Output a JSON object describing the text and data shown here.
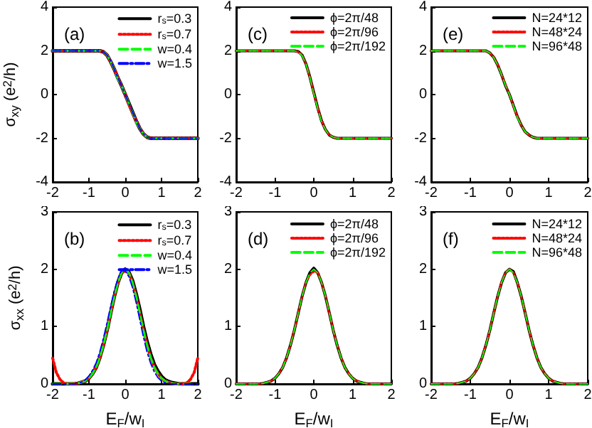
{
  "chart_data": [
    {
      "type": "line",
      "annotations": [
        "(a)"
      ],
      "ylabel": "σ$_{xy}$ (e$^{2}$/h)",
      "legend": "top right",
      "xlim": [
        -2,
        2
      ],
      "xticks": [
        -2,
        -1,
        0,
        1,
        2
      ],
      "ylim": [
        -4,
        4
      ],
      "yticks": [
        -4,
        -2,
        0,
        2,
        4
      ],
      "x": [
        -2,
        -1.9,
        -1.8,
        -1.7,
        -1.6,
        -1.5,
        -1.4,
        -1.3,
        -1.2,
        -1.1,
        -1,
        -0.9,
        -0.8,
        -0.7,
        -0.6,
        -0.5,
        -0.4,
        -0.3,
        -0.2,
        -0.1,
        0,
        0.1,
        0.2,
        0.3,
        0.4,
        0.5,
        0.6,
        0.7,
        0.8,
        0.9,
        1,
        1.1,
        1.2,
        1.3,
        1.4,
        1.5,
        1.6,
        1.7,
        1.8,
        1.9,
        2
      ],
      "series": [
        {
          "name": "r$_{s}$=0.3",
          "color": "#000000",
          "line_style": "solid",
          "values": [
            2,
            2,
            2,
            2,
            2,
            2,
            2,
            2,
            2,
            2,
            2,
            2,
            2,
            2,
            1.95,
            1.8,
            1.5,
            1.15,
            0.75,
            0.4,
            0,
            -0.4,
            -0.8,
            -1.2,
            -1.55,
            -1.8,
            -1.95,
            -2,
            -2,
            -2,
            -2,
            -2,
            -2,
            -2,
            -2,
            -2,
            -2,
            -2,
            -2,
            -2,
            -2
          ]
        },
        {
          "name": "r$_{s}$=0.7",
          "color": "#ff0000",
          "line_style": "dotted",
          "values": [
            2,
            2,
            2,
            2,
            2,
            2,
            2,
            2,
            2,
            2,
            2,
            2,
            2,
            2,
            1.95,
            1.8,
            1.5,
            1.15,
            0.75,
            0.4,
            0,
            -0.45,
            -0.85,
            -1.2,
            -1.55,
            -1.8,
            -1.95,
            -2,
            -2,
            -2,
            -2,
            -2,
            -2,
            -2,
            -2,
            -2,
            -2,
            -2,
            -2,
            -2,
            -2
          ]
        },
        {
          "name": "w=0.4",
          "color": "#00ff00",
          "line_style": "dashed",
          "values": [
            2,
            2,
            2,
            2,
            2,
            2,
            2,
            2,
            2,
            2,
            2,
            2,
            2,
            2,
            1.95,
            1.8,
            1.5,
            1.15,
            0.7,
            0.4,
            0,
            -0.4,
            -0.8,
            -1.25,
            -1.55,
            -1.8,
            -1.95,
            -2,
            -2,
            -2,
            -2,
            -2,
            -2,
            -2,
            -2,
            -2,
            -2,
            -2,
            -2,
            -2,
            -2
          ]
        },
        {
          "name": "w=1.5",
          "color": "#0000ff",
          "line_style": "dashdot",
          "values": [
            2,
            2,
            2,
            2,
            2,
            2,
            2,
            2,
            2,
            2,
            2,
            2,
            2,
            2,
            1.95,
            1.8,
            1.55,
            1.15,
            0.75,
            0.4,
            0,
            -0.4,
            -0.8,
            -1.2,
            -1.55,
            -1.8,
            -1.95,
            -2,
            -2,
            -2,
            -2,
            -2,
            -2,
            -2,
            -2,
            -2,
            -2,
            -2,
            -2,
            -2,
            -2
          ]
        }
      ]
    },
    {
      "type": "line",
      "annotations": [
        "(c)"
      ],
      "legend": "top right",
      "xlim": [
        -2,
        2
      ],
      "xticks": [
        -2,
        -1,
        0,
        1,
        2
      ],
      "ylim": [
        -4,
        4
      ],
      "yticks": [
        -4,
        -2,
        0,
        2,
        4
      ],
      "x": [
        -2,
        -1.9,
        -1.8,
        -1.7,
        -1.6,
        -1.5,
        -1.4,
        -1.3,
        -1.2,
        -1.1,
        -1,
        -0.9,
        -0.8,
        -0.7,
        -0.6,
        -0.5,
        -0.4,
        -0.3,
        -0.2,
        -0.1,
        0,
        0.1,
        0.2,
        0.3,
        0.4,
        0.5,
        0.6,
        0.7,
        0.8,
        0.9,
        1,
        1.1,
        1.2,
        1.3,
        1.4,
        1.5,
        1.6,
        1.7,
        1.8,
        1.9,
        2
      ],
      "series": [
        {
          "name": "ϕ=2π/48",
          "color": "#000000",
          "line_style": "solid",
          "values": [
            2,
            2,
            2,
            2,
            2,
            2,
            2,
            2,
            2,
            2,
            2,
            2,
            2,
            2,
            2,
            2,
            1.97,
            1.8,
            1.4,
            0.8,
            0.1,
            -0.6,
            -1.2,
            -1.6,
            -1.85,
            -1.95,
            -2,
            -2,
            -2,
            -2,
            -2,
            -2,
            -2,
            -2,
            -2,
            -2,
            -2,
            -2,
            -2,
            -2,
            -2
          ]
        },
        {
          "name": "ϕ=2π/96",
          "color": "#ff0000",
          "line_style": "dotted",
          "values": [
            2,
            2,
            2,
            2,
            2,
            2,
            2,
            2,
            2,
            2,
            2,
            2,
            2,
            2,
            2,
            2,
            1.95,
            1.8,
            1.4,
            0.8,
            0.05,
            -0.6,
            -1.2,
            -1.6,
            -1.85,
            -1.95,
            -2,
            -2,
            -2,
            -2,
            -2,
            -2,
            -2,
            -2,
            -2,
            -2,
            -2,
            -2,
            -2,
            -2,
            -2
          ]
        },
        {
          "name": "ϕ=2π/192",
          "color": "#00ff00",
          "line_style": "dashed",
          "values": [
            2,
            2,
            2,
            2,
            2,
            2,
            2,
            2,
            2,
            2,
            2,
            2,
            2,
            2,
            2,
            2,
            1.95,
            1.78,
            1.38,
            0.78,
            0.05,
            -0.65,
            -1.25,
            -1.6,
            -1.85,
            -1.95,
            -2,
            -2,
            -2,
            -2,
            -2,
            -2,
            -2,
            -2,
            -2,
            -2,
            -2,
            -2,
            -2,
            -2,
            -2
          ]
        }
      ]
    },
    {
      "type": "line",
      "annotations": [
        "(e)"
      ],
      "legend": "top right",
      "xlim": [
        -2,
        2
      ],
      "xticks": [
        -2,
        -1,
        0,
        1,
        2
      ],
      "ylim": [
        -4,
        4
      ],
      "yticks": [
        -4,
        -2,
        0,
        2,
        4
      ],
      "x": [
        -2,
        -1.9,
        -1.8,
        -1.7,
        -1.6,
        -1.5,
        -1.4,
        -1.3,
        -1.2,
        -1.1,
        -1,
        -0.9,
        -0.8,
        -0.7,
        -0.6,
        -0.5,
        -0.4,
        -0.3,
        -0.2,
        -0.1,
        0,
        0.1,
        0.2,
        0.3,
        0.4,
        0.5,
        0.6,
        0.7,
        0.8,
        0.9,
        1,
        1.1,
        1.2,
        1.3,
        1.4,
        1.5,
        1.6,
        1.7,
        1.8,
        1.9,
        2
      ],
      "series": [
        {
          "name": "N=24*12",
          "color": "#000000",
          "line_style": "solid",
          "values": [
            2,
            2,
            2,
            2,
            2,
            2,
            2,
            2,
            2,
            2,
            2,
            2,
            2,
            2,
            2,
            1.9,
            1.7,
            1.35,
            0.9,
            0.4,
            0,
            -0.5,
            -1,
            -1.4,
            -1.7,
            -1.85,
            -1.95,
            -2,
            -2,
            -2,
            -2,
            -2,
            -2,
            -2,
            -2,
            -2,
            -2,
            -2,
            -2,
            -2,
            -2
          ]
        },
        {
          "name": "N=48*24",
          "color": "#ff0000",
          "line_style": "dotted",
          "values": [
            2,
            2,
            2,
            2,
            2,
            2,
            2,
            2,
            2,
            2,
            2,
            2,
            2,
            2,
            2,
            1.9,
            1.7,
            1.35,
            0.9,
            0.45,
            0,
            -0.55,
            -1,
            -1.4,
            -1.7,
            -1.85,
            -1.95,
            -2,
            -2,
            -2,
            -2,
            -2,
            -2,
            -2,
            -2,
            -2,
            -2,
            -2,
            -2,
            -2,
            -2
          ]
        },
        {
          "name": "N=96*48",
          "color": "#00ff00",
          "line_style": "dashed",
          "values": [
            2,
            2,
            2,
            2,
            2,
            2,
            2,
            2,
            2,
            2,
            2,
            2,
            2,
            2,
            2,
            1.9,
            1.68,
            1.35,
            0.9,
            0.4,
            0,
            -0.5,
            -1.05,
            -1.4,
            -1.7,
            -1.85,
            -1.95,
            -2,
            -2,
            -2,
            -2,
            -2,
            -2,
            -2,
            -2,
            -2,
            -2,
            -2,
            -2,
            -2,
            -2
          ]
        }
      ]
    },
    {
      "type": "line",
      "annotations": [
        "(b)"
      ],
      "ylabel": "σ$_{xx}$ (e$^{2}$/h)",
      "xlabel": "E$_{F}$/w$_{I}$",
      "legend": "top right",
      "xlim": [
        -2,
        2
      ],
      "xticks": [
        -2,
        -1,
        0,
        1,
        2
      ],
      "ylim": [
        0,
        3
      ],
      "yticks": [
        0,
        1,
        2,
        3
      ],
      "x": [
        -2,
        -1.9,
        -1.8,
        -1.7,
        -1.6,
        -1.5,
        -1.4,
        -1.3,
        -1.2,
        -1.1,
        -1,
        -0.9,
        -0.8,
        -0.7,
        -0.6,
        -0.5,
        -0.4,
        -0.3,
        -0.2,
        -0.1,
        0,
        0.1,
        0.2,
        0.3,
        0.4,
        0.5,
        0.6,
        0.7,
        0.8,
        0.9,
        1,
        1.1,
        1.2,
        1.3,
        1.4,
        1.5,
        1.6,
        1.7,
        1.8,
        1.9,
        2
      ],
      "series": [
        {
          "name": "r$_{s}$=0.3",
          "color": "#000000",
          "line_style": "solid",
          "values": [
            0,
            0,
            0,
            0,
            0,
            0,
            0,
            0.01,
            0.03,
            0.05,
            0.1,
            0.18,
            0.29,
            0.46,
            0.68,
            0.94,
            1.24,
            1.53,
            1.77,
            1.94,
            2,
            1.95,
            1.8,
            1.57,
            1.3,
            1,
            0.74,
            0.52,
            0.34,
            0.22,
            0.13,
            0.07,
            0.04,
            0.02,
            0.01,
            0,
            0,
            0,
            0,
            0,
            0
          ]
        },
        {
          "name": "r$_{s}$=0.7",
          "color": "#ff0000",
          "line_style": "dotted",
          "values": [
            0.45,
            0.2,
            0.08,
            0.02,
            0,
            0,
            0,
            0.01,
            0.03,
            0.05,
            0.1,
            0.18,
            0.29,
            0.46,
            0.68,
            0.94,
            1.24,
            1.53,
            1.77,
            1.94,
            1.97,
            1.94,
            1.77,
            1.53,
            1.24,
            0.94,
            0.68,
            0.46,
            0.29,
            0.18,
            0.1,
            0.05,
            0.03,
            0.01,
            0,
            0,
            0,
            0.02,
            0.08,
            0.2,
            0.45
          ]
        },
        {
          "name": "w=0.4",
          "color": "#00ff00",
          "line_style": "dashed",
          "values": [
            0,
            0,
            0,
            0,
            0,
            0,
            0,
            0.01,
            0.03,
            0.05,
            0.1,
            0.18,
            0.29,
            0.46,
            0.68,
            0.94,
            1.24,
            1.53,
            1.77,
            1.94,
            2,
            1.94,
            1.77,
            1.53,
            1.24,
            0.94,
            0.68,
            0.46,
            0.29,
            0.18,
            0.1,
            0.05,
            0.03,
            0.01,
            0,
            0,
            0,
            0,
            0,
            null,
            null
          ]
        },
        {
          "name": "w=1.5",
          "color": "#0000ff",
          "line_style": "dashdot",
          "values": [
            0,
            0,
            0,
            0,
            0,
            0,
            0,
            0.01,
            0.03,
            0.07,
            0.14,
            0.24,
            0.37,
            0.56,
            0.8,
            1.07,
            1.36,
            1.63,
            1.84,
            1.98,
            1.97,
            1.87,
            1.68,
            1.42,
            1.12,
            0.82,
            0.56,
            0.36,
            0.21,
            0.11,
            0.05,
            0.02,
            0.01,
            0,
            0,
            0,
            0,
            0,
            0,
            0,
            0
          ]
        }
      ]
    },
    {
      "type": "line",
      "annotations": [
        "(d)"
      ],
      "xlabel": "E$_{F}$/w$_{I}$",
      "legend": "top right",
      "xlim": [
        -2,
        2
      ],
      "xticks": [
        -2,
        -1,
        0,
        1,
        2
      ],
      "ylim": [
        0,
        3
      ],
      "yticks": [
        0,
        1,
        2,
        3
      ],
      "x": [
        -2,
        -1.9,
        -1.8,
        -1.7,
        -1.6,
        -1.5,
        -1.4,
        -1.3,
        -1.2,
        -1.1,
        -1,
        -0.9,
        -0.8,
        -0.7,
        -0.6,
        -0.5,
        -0.4,
        -0.3,
        -0.2,
        -0.1,
        0,
        0.1,
        0.2,
        0.3,
        0.4,
        0.5,
        0.6,
        0.7,
        0.8,
        0.9,
        1,
        1.1,
        1.2,
        1.3,
        1.4,
        1.5,
        1.6,
        1.7,
        1.8,
        1.9,
        2
      ],
      "series": [
        {
          "name": "ϕ=2π/48",
          "color": "#000000",
          "line_style": "solid",
          "values": [
            0,
            0,
            0,
            0,
            0,
            0,
            0,
            0.01,
            0.03,
            0.05,
            0.1,
            0.18,
            0.29,
            0.46,
            0.68,
            0.94,
            1.24,
            1.53,
            1.77,
            1.94,
            2.02,
            1.94,
            1.77,
            1.53,
            1.24,
            0.94,
            0.68,
            0.46,
            0.29,
            0.18,
            0.1,
            0.05,
            0.03,
            0.01,
            0,
            0,
            0,
            0,
            0,
            0,
            0
          ]
        },
        {
          "name": "ϕ=2π/96",
          "color": "#ff0000",
          "line_style": "dotted",
          "values": [
            0,
            0,
            0,
            0,
            0,
            0,
            0,
            0.01,
            0.03,
            0.05,
            0.1,
            0.18,
            0.29,
            0.46,
            0.68,
            0.94,
            1.24,
            1.53,
            1.77,
            1.9,
            1.96,
            1.94,
            1.77,
            1.53,
            1.24,
            0.94,
            0.68,
            0.46,
            0.29,
            0.18,
            0.1,
            0.05,
            0.03,
            0.01,
            0,
            0,
            0,
            0,
            0,
            0,
            0
          ]
        },
        {
          "name": "ϕ=2π/192",
          "color": "#00ff00",
          "line_style": "dashed",
          "values": [
            0,
            0,
            0,
            0,
            0,
            0,
            0,
            0.01,
            0.03,
            0.05,
            0.1,
            0.18,
            0.29,
            0.46,
            0.68,
            0.94,
            1.24,
            1.53,
            1.77,
            1.94,
            2,
            1.94,
            1.77,
            1.53,
            1.24,
            0.94,
            0.68,
            0.46,
            0.29,
            0.18,
            0.1,
            0.05,
            0.03,
            0.01,
            0,
            0,
            0,
            0,
            0,
            0,
            0
          ]
        }
      ]
    },
    {
      "type": "line",
      "annotations": [
        "(f)"
      ],
      "xlabel": "E$_{F}$/w$_{I}$",
      "legend": "top right",
      "xlim": [
        -2,
        2
      ],
      "xticks": [
        -2,
        -1,
        0,
        1,
        2
      ],
      "ylim": [
        0,
        3
      ],
      "yticks": [
        0,
        1,
        2,
        3
      ],
      "x": [
        -2,
        -1.9,
        -1.8,
        -1.7,
        -1.6,
        -1.5,
        -1.4,
        -1.3,
        -1.2,
        -1.1,
        -1,
        -0.9,
        -0.8,
        -0.7,
        -0.6,
        -0.5,
        -0.4,
        -0.3,
        -0.2,
        -0.1,
        0,
        0.1,
        0.2,
        0.3,
        0.4,
        0.5,
        0.6,
        0.7,
        0.8,
        0.9,
        1,
        1.1,
        1.2,
        1.3,
        1.4,
        1.5,
        1.6,
        1.7,
        1.8,
        1.9,
        2
      ],
      "series": [
        {
          "name": "N=24*12",
          "color": "#000000",
          "line_style": "solid",
          "values": [
            0,
            0,
            0,
            0,
            0,
            0,
            0,
            0.01,
            0.03,
            0.05,
            0.1,
            0.18,
            0.29,
            0.46,
            0.68,
            0.94,
            1.24,
            1.53,
            1.77,
            1.94,
            2,
            1.96,
            1.77,
            1.53,
            1.24,
            0.94,
            0.68,
            0.46,
            0.29,
            0.18,
            0.1,
            0.05,
            0.03,
            0.01,
            0,
            0,
            0,
            0,
            0,
            0,
            0
          ]
        },
        {
          "name": "N=48*24",
          "color": "#ff0000",
          "line_style": "dotted",
          "values": [
            0,
            0,
            0,
            0,
            0,
            0,
            0,
            0.01,
            0.03,
            0.05,
            0.1,
            0.18,
            0.29,
            0.46,
            0.68,
            0.94,
            1.24,
            1.53,
            1.78,
            1.94,
            2,
            1.94,
            1.77,
            1.53,
            1.24,
            0.94,
            0.68,
            0.46,
            0.29,
            0.18,
            0.1,
            0.05,
            0.03,
            0.01,
            0,
            0,
            0,
            0,
            0,
            0,
            0
          ]
        },
        {
          "name": "N=96*48",
          "color": "#00ff00",
          "line_style": "dashed",
          "values": [
            0,
            0,
            0,
            0,
            0,
            0,
            0,
            0.01,
            0.03,
            0.05,
            0.1,
            0.18,
            0.29,
            0.46,
            0.68,
            0.94,
            1.24,
            1.53,
            1.77,
            1.94,
            2,
            1.94,
            1.77,
            1.53,
            1.24,
            0.94,
            0.68,
            0.46,
            0.29,
            0.18,
            0.1,
            0.05,
            0.03,
            0.01,
            0,
            0,
            0,
            0,
            0,
            0,
            0
          ]
        }
      ]
    }
  ]
}
